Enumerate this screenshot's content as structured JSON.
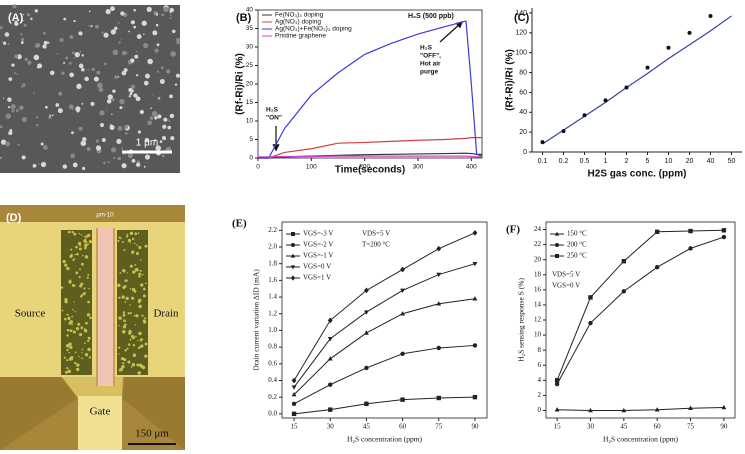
{
  "images": [
    {
      "panel": "(A)",
      "scale_bar": "1 μm"
    },
    {
      "panel": "(D)",
      "top_label": "μm-10",
      "labels": [
        "Source",
        "Drain",
        "Gate"
      ],
      "scale_bar": "150 μm"
    }
  ],
  "chart_data": [
    {
      "type": "line",
      "panel": "(B)",
      "title": "H₂S (500 ppb)",
      "x_label": "Time(seconds)",
      "y_label": "(Rf-Ri)/Ri (%)",
      "x": [
        0,
        20,
        50,
        100,
        150,
        200,
        250,
        300,
        350,
        390,
        400,
        410,
        420
      ],
      "xlim": [
        0,
        420
      ],
      "xticks": [
        0,
        100,
        200,
        300,
        400
      ],
      "ylim": [
        0,
        40
      ],
      "yticks": [
        0,
        5,
        10,
        15,
        20,
        25,
        30,
        35,
        40
      ],
      "legend": "upper left",
      "series": [
        {
          "name": "Fe(NO₃)₃ doping",
          "color": "#333333",
          "values": [
            0,
            0,
            0.3,
            0.5,
            0.7,
            0.9,
            1,
            1.1,
            1.2,
            1.3,
            1.2,
            1,
            1
          ]
        },
        {
          "name": "Ag(NO₃) doping",
          "color": "#d04040",
          "values": [
            0,
            0,
            1.5,
            2.5,
            4,
            4.2,
            4.5,
            4.8,
            5,
            5.3,
            5.5,
            5.5,
            5.5
          ]
        },
        {
          "name": "Ag(NO₃)+Fe(NO₃)₃ doping",
          "color": "#3a3adf",
          "values": [
            0,
            0,
            8,
            17,
            23,
            28,
            31,
            33.5,
            35.5,
            37,
            20,
            1,
            0.5
          ]
        },
        {
          "name": "Pristine graphene",
          "color": "#d040d0",
          "values": [
            0.3,
            0.3,
            0.4,
            0.4,
            0.5,
            0.5,
            0.5,
            0.5,
            0.5,
            0.5,
            0.4,
            0.3,
            0.3
          ]
        }
      ],
      "annotations": [
        [
          "H₂S",
          "\"ON\""
        ],
        [
          "H₂S",
          "\"OFF\",",
          "Hot air",
          "purge"
        ]
      ]
    },
    {
      "type": "scatter",
      "panel": "(C)",
      "x_label": "H2S gas conc. (ppm)",
      "y_label": "(Rf-Ri)/Ri (%)",
      "categories": [
        "0.1",
        "0.2",
        "0.5",
        "1",
        "2",
        "5",
        "10",
        "20",
        "40",
        "50"
      ],
      "values": [
        10,
        21,
        37,
        52,
        65,
        85,
        105,
        120,
        137,
        null
      ],
      "color": "#111111",
      "fit": {
        "color": "#3040b0",
        "values": [
          8,
          22,
          36,
          50,
          65,
          79,
          94,
          108,
          122,
          137
        ]
      },
      "ylim": [
        0,
        145
      ],
      "yticks": [
        0,
        20,
        40,
        60,
        80,
        100,
        120,
        140
      ]
    },
    {
      "type": "line",
      "panel": "(E)",
      "x_label": "H₂S concentration (ppm)",
      "y_label": "Drain current variation ΔID (mA)",
      "x": [
        15,
        30,
        45,
        60,
        75,
        90
      ],
      "xlim": [
        10,
        95
      ],
      "xticks": [
        15,
        30,
        45,
        60,
        75,
        90
      ],
      "ylim": [
        -0.05,
        2.3
      ],
      "yticks": [
        {
          "value": 0,
          "label": "0.0"
        },
        0.2,
        0.4,
        0.6,
        0.8,
        {
          "value": 1,
          "label": "1.0"
        },
        1.2,
        1.4,
        1.6,
        1.8,
        {
          "value": 2,
          "label": "2.0"
        },
        2.2
      ],
      "legend": "upper left",
      "series": [
        {
          "name": "VGS=-3 V",
          "color": "#222222",
          "marker": "square",
          "values": [
            0,
            0.05,
            0.12,
            0.17,
            0.19,
            0.2
          ]
        },
        {
          "name": "VGS=-2 V",
          "color": "#222222",
          "marker": "circle",
          "values": [
            0.12,
            0.35,
            0.55,
            0.72,
            0.79,
            0.82
          ]
        },
        {
          "name": "VGS=-1 V",
          "color": "#222222",
          "marker": "triangle-up",
          "values": [
            0.23,
            0.66,
            0.97,
            1.2,
            1.32,
            1.38
          ]
        },
        {
          "name": "VGS=0 V",
          "color": "#222222",
          "marker": "triangle-down",
          "values": [
            0.32,
            0.9,
            1.22,
            1.48,
            1.67,
            1.8
          ]
        },
        {
          "name": "VGS=1 V",
          "color": "#222222",
          "marker": "diamond",
          "values": [
            0.4,
            1.12,
            1.48,
            1.73,
            1.98,
            2.17
          ]
        }
      ],
      "annotations": [
        [
          "VDS=5 V"
        ],
        [
          "T=200 °C"
        ]
      ]
    },
    {
      "type": "line",
      "panel": "(F)",
      "x_label": "H₂S concentration (ppm)",
      "y_label": "H₂S sensing response S (%)",
      "x": [
        15,
        30,
        45,
        60,
        75,
        90
      ],
      "xlim": [
        10,
        95
      ],
      "xticks": [
        15,
        30,
        45,
        60,
        75,
        90
      ],
      "ylim": [
        -1,
        25
      ],
      "yticks": [
        0,
        2,
        4,
        6,
        8,
        10,
        12,
        14,
        16,
        18,
        20,
        22,
        24
      ],
      "legend": "upper left",
      "series": [
        {
          "name": "150 °C",
          "color": "#222222",
          "marker": "triangle-up",
          "values": [
            0.1,
            0,
            0,
            0.1,
            0.3,
            0.4
          ]
        },
        {
          "name": "200 °C",
          "color": "#222222",
          "marker": "circle",
          "values": [
            3.5,
            11.6,
            15.8,
            19,
            21.5,
            23
          ]
        },
        {
          "name": "250 °C",
          "color": "#222222",
          "marker": "square",
          "values": [
            4,
            15,
            19.8,
            23.7,
            23.8,
            23.9
          ]
        }
      ],
      "annotations": [
        [
          "VDS=5 V"
        ],
        [
          "VGS=0 V"
        ]
      ]
    }
  ]
}
